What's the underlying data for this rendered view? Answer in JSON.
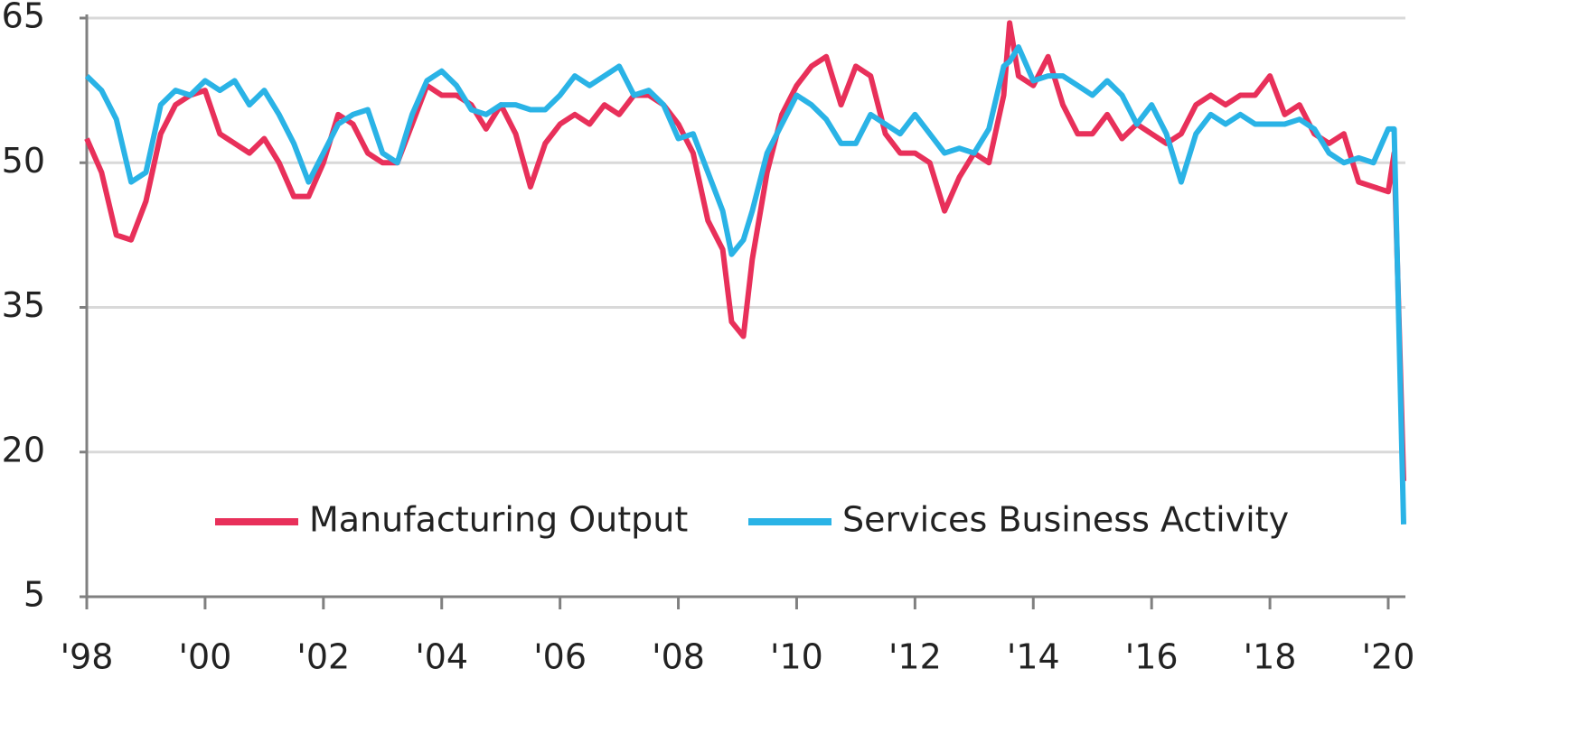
{
  "chart_data": {
    "type": "line",
    "x": [
      1998.0,
      1998.25,
      1998.5,
      1998.75,
      1999.0,
      1999.25,
      1999.5,
      1999.75,
      2000.0,
      2000.25,
      2000.5,
      2000.75,
      2001.0,
      2001.25,
      2001.5,
      2001.75,
      2002.0,
      2002.25,
      2002.5,
      2002.75,
      2003.0,
      2003.25,
      2003.5,
      2003.75,
      2004.0,
      2004.25,
      2004.5,
      2004.75,
      2005.0,
      2005.25,
      2005.5,
      2005.75,
      2006.0,
      2006.25,
      2006.5,
      2006.75,
      2007.0,
      2007.25,
      2007.5,
      2007.75,
      2008.0,
      2008.25,
      2008.5,
      2008.75,
      2008.9,
      2009.1,
      2009.25,
      2009.5,
      2009.75,
      2010.0,
      2010.25,
      2010.5,
      2010.75,
      2011.0,
      2011.25,
      2011.5,
      2011.75,
      2012.0,
      2012.25,
      2012.5,
      2012.75,
      2013.0,
      2013.25,
      2013.5,
      2013.6,
      2013.75,
      2014.0,
      2014.25,
      2014.5,
      2014.75,
      2015.0,
      2015.25,
      2015.5,
      2015.75,
      2016.0,
      2016.25,
      2016.5,
      2016.75,
      2017.0,
      2017.25,
      2017.5,
      2017.75,
      2018.0,
      2018.25,
      2018.5,
      2018.75,
      2019.0,
      2019.25,
      2019.5,
      2019.75,
      2020.0,
      2020.1,
      2020.26
    ],
    "series": [
      {
        "name": "Manufacturing Output",
        "color": "#e8305a",
        "values": [
          52.5,
          49,
          42.5,
          42,
          46,
          53,
          56,
          57,
          57.5,
          53,
          52,
          51,
          52.5,
          50,
          46.5,
          46.5,
          50,
          55,
          54,
          51,
          50,
          50,
          54,
          58,
          57,
          57,
          56,
          53.5,
          56,
          53,
          47.5,
          52,
          54,
          55,
          54,
          56,
          55,
          57,
          57,
          56,
          54,
          51,
          44,
          41,
          33.5,
          32,
          40,
          49,
          55,
          58,
          60,
          61,
          56,
          60,
          59,
          53,
          51,
          51,
          50,
          45,
          48.5,
          51,
          50,
          57,
          64.5,
          59,
          58,
          61,
          56,
          53,
          53,
          55,
          52.5,
          54,
          53,
          52,
          53,
          56,
          57,
          56,
          57,
          57,
          59,
          55,
          56,
          53,
          52,
          53,
          48,
          47.5,
          47,
          51,
          17
        ]
      },
      {
        "name": "Services Business Activity",
        "color": "#2ab3e6",
        "values": [
          59,
          57.5,
          54.5,
          48,
          49,
          56,
          57.5,
          57,
          58.5,
          57.5,
          58.5,
          56,
          57.5,
          55,
          52,
          48,
          51,
          54,
          55,
          55.5,
          51,
          50,
          55,
          58.5,
          59.5,
          58,
          55.5,
          55,
          56,
          56,
          55.5,
          55.5,
          57,
          59,
          58,
          59,
          60,
          57,
          57.5,
          56,
          52.5,
          53,
          49,
          45,
          40.5,
          42,
          45,
          51,
          54,
          57,
          56,
          54.5,
          52,
          52,
          55,
          54,
          53,
          55,
          53,
          51,
          51.5,
          51,
          53.5,
          60,
          60.5,
          62,
          58.5,
          59,
          59,
          58,
          57,
          58.5,
          57,
          54,
          56,
          53,
          48,
          53,
          55,
          54,
          55,
          54,
          54,
          54,
          54.5,
          53.5,
          51,
          50,
          50.5,
          50,
          53.5,
          53.5,
          12.5
        ]
      }
    ],
    "xlim": [
      1998,
      2020.26
    ],
    "xticks": [
      {
        "value": 1998,
        "label": "'98"
      },
      {
        "value": 2000,
        "label": "'00"
      },
      {
        "value": 2002,
        "label": "'02"
      },
      {
        "value": 2004,
        "label": "'04"
      },
      {
        "value": 2006,
        "label": "'06"
      },
      {
        "value": 2008,
        "label": "'08"
      },
      {
        "value": 2010,
        "label": "'10"
      },
      {
        "value": 2012,
        "label": "'12"
      },
      {
        "value": 2014,
        "label": "'14"
      },
      {
        "value": 2016,
        "label": "'16"
      },
      {
        "value": 2018,
        "label": "'18"
      },
      {
        "value": 2020,
        "label": "'20"
      }
    ],
    "ylim": [
      5,
      65
    ],
    "yticks": [
      5,
      20,
      35,
      50,
      65
    ],
    "grid": true,
    "legend": "bottom"
  }
}
